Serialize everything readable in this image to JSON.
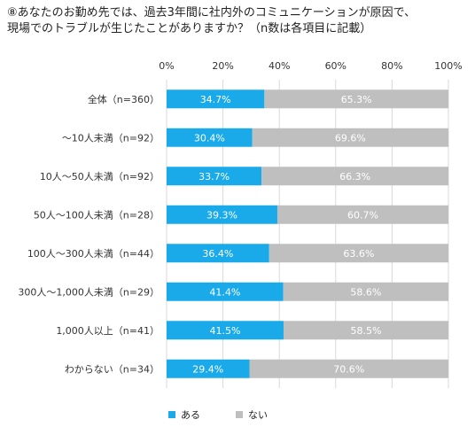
{
  "title_lines": [
    "⑧あなたのお勤め先では、過去3年間に社内外のコミュニケーションが原因で、",
    "現場でのトラブルが生じたことがありますか？（n数は各項目に記載）"
  ],
  "chart_data": {
    "type": "bar",
    "orientation": "horizontal",
    "stacked": true,
    "percent": true,
    "title": "⑧あなたのお勤め先では、過去3年間に社内外のコミュニケーションが原因で、現場でのトラブルが生じたことがありますか？（n数は各項目に記載）",
    "categories": [
      "全体（n=360）",
      "〜10人未満（n=92）",
      "10人〜50人未満（n=92）",
      "50人〜100人未満（n=28）",
      "100人〜300人未満（n=44）",
      "300人〜1,000人未満（n=29）",
      "1,000人以上（n=41）",
      "わからない（n=34）"
    ],
    "series": [
      {
        "name": "ある",
        "color": "#1aaaea",
        "values": [
          34.7,
          30.4,
          33.7,
          39.3,
          36.4,
          41.4,
          41.5,
          29.4
        ]
      },
      {
        "name": "ない",
        "color": "#bfbfbf",
        "values": [
          65.3,
          69.6,
          66.3,
          60.7,
          63.6,
          58.6,
          58.5,
          70.6
        ]
      }
    ],
    "xlim": [
      0,
      100
    ],
    "xticks": [
      "0%",
      "20%",
      "40%",
      "60%",
      "80%",
      "100%"
    ],
    "xlabel": "",
    "ylabel": "",
    "grid": true,
    "legend": "bottom"
  }
}
